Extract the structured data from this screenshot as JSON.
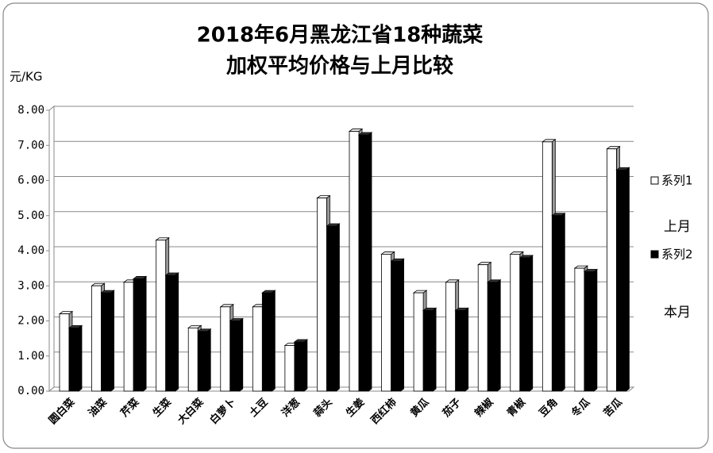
{
  "chart_data": {
    "type": "bar3d",
    "title": [
      "2018年6月黑龙江省18种蔬菜",
      "加权平均价格与上月比较"
    ],
    "y_label": "元/KG",
    "categories": [
      "圆白菜",
      "油菜",
      "芹菜",
      "生菜",
      "大白菜",
      "白萝卜",
      "土豆",
      "洋葱",
      "蒜头",
      "生姜",
      "西红柿",
      "黄瓜",
      "茄子",
      "辣椒",
      "青椒",
      "豆角",
      "冬瓜",
      "苦瓜"
    ],
    "series": [
      {
        "name": "系列1",
        "color": "#ffffff",
        "values": [
          2.2,
          3.0,
          3.1,
          4.3,
          1.8,
          2.4,
          2.4,
          1.3,
          5.5,
          7.4,
          3.9,
          2.8,
          3.1,
          3.6,
          3.9,
          7.1,
          3.5,
          6.9
        ]
      },
      {
        "name": "系列2",
        "color": "#000000",
        "values": [
          1.8,
          2.8,
          3.2,
          3.3,
          1.7,
          2.0,
          2.8,
          1.4,
          4.7,
          7.3,
          3.7,
          2.3,
          2.3,
          3.1,
          3.8,
          5.0,
          3.4,
          6.3
        ]
      }
    ],
    "annotations": [
      "上月",
      "本月"
    ],
    "ylim": [
      0,
      8
    ],
    "yticks": [
      {
        "value": 0,
        "label": "0.00"
      },
      {
        "value": 1,
        "label": "1.00"
      },
      {
        "value": 2,
        "label": "2.00"
      },
      {
        "value": 3,
        "label": "3.00"
      },
      {
        "value": 4,
        "label": "4.00"
      },
      {
        "value": 5,
        "label": "5.00"
      },
      {
        "value": 6,
        "label": "6.00"
      },
      {
        "value": 7,
        "label": "7.00"
      },
      {
        "value": 8,
        "label": "8.00"
      }
    ],
    "grid": true,
    "legend": "right"
  }
}
